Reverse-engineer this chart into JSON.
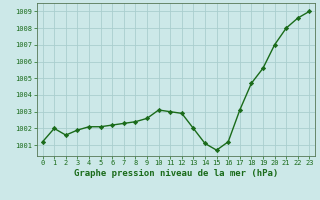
{
  "x": [
    0,
    1,
    2,
    3,
    4,
    5,
    6,
    7,
    8,
    9,
    10,
    11,
    12,
    13,
    14,
    15,
    16,
    17,
    18,
    19,
    20,
    21,
    22,
    23
  ],
  "y": [
    1001.2,
    1002.0,
    1001.6,
    1001.9,
    1002.1,
    1002.1,
    1002.2,
    1002.3,
    1002.4,
    1002.6,
    1003.1,
    1003.0,
    1002.9,
    1002.0,
    1001.1,
    1000.7,
    1001.2,
    1003.1,
    1004.7,
    1005.6,
    1007.0,
    1008.0,
    1008.6,
    1009.0
  ],
  "line_color": "#1a6b1a",
  "marker": "D",
  "marker_size": 2.2,
  "line_width": 1.0,
  "bg_color": "#cce8e8",
  "grid_color": "#aacece",
  "xlabel": "Graphe pression niveau de la mer (hPa)",
  "xlabel_fontsize": 6.5,
  "xlabel_color": "#1a6b1a",
  "ytick_labels": [
    1001,
    1002,
    1003,
    1004,
    1005,
    1006,
    1007,
    1008,
    1009
  ],
  "ylim": [
    1000.35,
    1009.5
  ],
  "xlim": [
    -0.5,
    23.5
  ],
  "xtick_fontsize": 5.0,
  "ytick_fontsize": 5.0,
  "tick_color": "#1a6b1a"
}
